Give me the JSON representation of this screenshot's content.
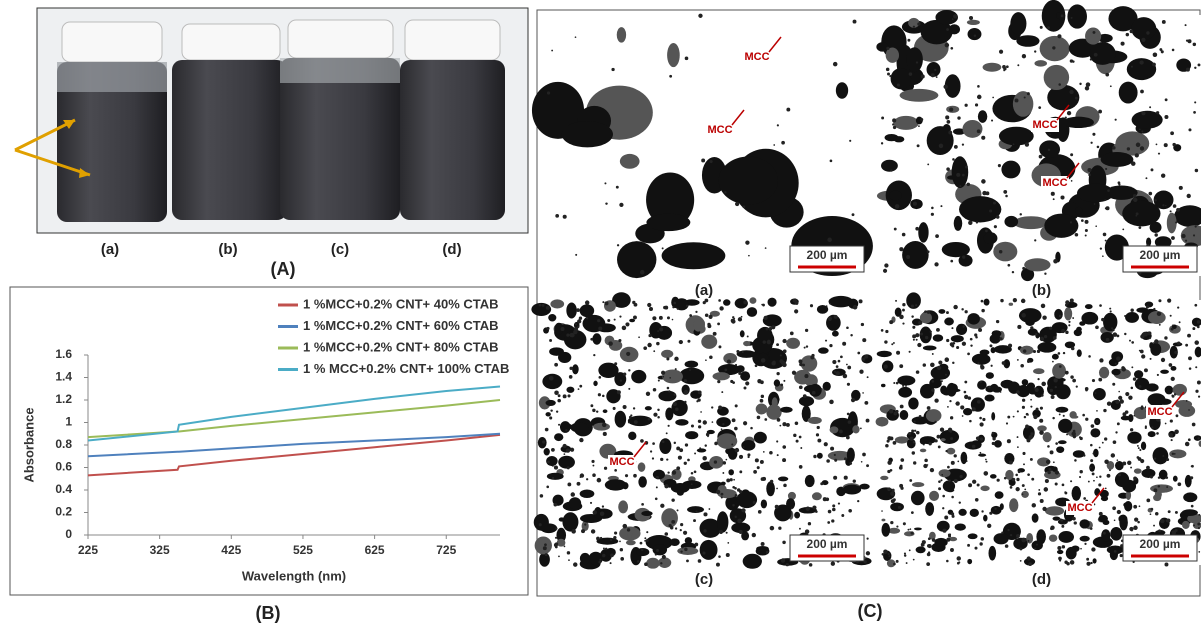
{
  "panel_a": {
    "caption": "(A)",
    "labels": [
      "(a)",
      "(b)",
      "(c)",
      "(d)"
    ]
  },
  "chart_data": {
    "type": "line",
    "caption": "(B)",
    "x_label": "Wavelength (nm)",
    "y_label": "Absorbance",
    "x": [
      225,
      350,
      352,
      425,
      525,
      625,
      725,
      800
    ],
    "series": [
      {
        "name": "1  %MCC+0.2% CNT+ 40% CTAB",
        "color": "#c0504d",
        "values": [
          0.53,
          0.58,
          0.61,
          0.66,
          0.72,
          0.78,
          0.84,
          0.89
        ]
      },
      {
        "name": "1  %MCC+0.2% CNT+ 60% CTAB",
        "color": "#4f81bd",
        "values": [
          0.7,
          0.74,
          0.74,
          0.77,
          0.81,
          0.84,
          0.87,
          0.9
        ]
      },
      {
        "name": "1 %MCC+0.2% CNT+ 80% CTAB",
        "color": "#9bbb59",
        "values": [
          0.87,
          0.92,
          0.92,
          0.97,
          1.03,
          1.09,
          1.15,
          1.2
        ]
      },
      {
        "name": "1 % MCC+0.2% CNT+ 100% CTAB",
        "color": "#4bacc6",
        "values": [
          0.84,
          0.92,
          0.98,
          1.05,
          1.13,
          1.21,
          1.28,
          1.32
        ]
      }
    ],
    "xlim": [
      225,
      800
    ],
    "xticks": [
      225,
      325,
      425,
      525,
      625,
      725
    ],
    "ylim": [
      0,
      1.6
    ],
    "yticks": [
      0,
      0.2,
      0.4,
      0.6,
      0.8,
      1,
      1.2,
      1.4,
      1.6
    ]
  },
  "panel_c": {
    "caption": "(C)",
    "images": [
      {
        "label": "(a)",
        "scale_bar": "200 µm",
        "annotations": [
          "MCC",
          "MCC"
        ]
      },
      {
        "label": "(b)",
        "scale_bar": "200 µm",
        "annotations": [
          "MCC",
          "MCC"
        ]
      },
      {
        "label": "(c)",
        "scale_bar": "200 µm",
        "annotations": [
          "MCC"
        ]
      },
      {
        "label": "(d)",
        "scale_bar": "200 µm",
        "annotations": [
          "MCC",
          "MCC"
        ]
      }
    ]
  }
}
